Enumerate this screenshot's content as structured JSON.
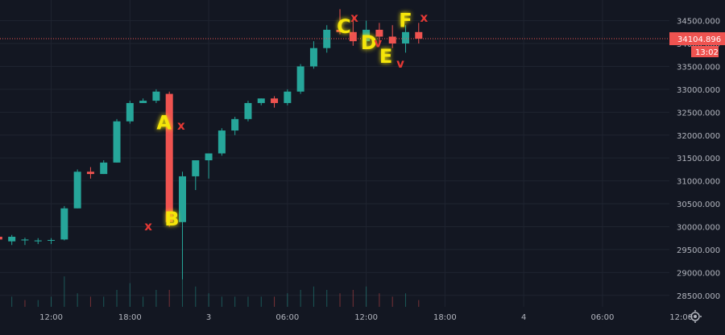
{
  "chart_data": {
    "type": "candlestick",
    "colors": {
      "up": "#26a69a",
      "down": "#ef5350",
      "background": "#131722",
      "grid": "#1f2430",
      "text": "#b2b5be",
      "price_line": "#ef5350"
    },
    "y_ticks": [
      28500,
      29000,
      29500,
      30000,
      30500,
      31000,
      31500,
      32000,
      32500,
      33000,
      33500,
      34000,
      34500
    ],
    "y_tick_labels": [
      "28500.000",
      "29000.000",
      "29500.000",
      "30000.000",
      "30500.000",
      "31000.000",
      "31500.000",
      "32000.000",
      "32500.000",
      "33000.000",
      "33500.000",
      "34000.000",
      "34500.000"
    ],
    "ylim": [
      28250,
      34950
    ],
    "x_ticks": [
      12,
      18,
      24,
      30,
      36,
      42,
      48,
      54,
      60
    ],
    "x_tick_labels": [
      "12:00",
      "18:00",
      "3",
      "06:00",
      "12:00",
      "18:00",
      "4",
      "06:00",
      "12:00"
    ],
    "xlim": [
      8.1,
      59.1
    ],
    "gear_icon": "gear-icon",
    "current_price": 34104.896,
    "current_price_label": "34104.896",
    "countdown_label": "13:02",
    "candles": [
      {
        "t": 8,
        "o": 29780,
        "h": 29850,
        "l": 29680,
        "c": 29720
      },
      {
        "t": 9,
        "o": 29680,
        "h": 29820,
        "l": 29600,
        "c": 29780
      },
      {
        "t": 10,
        "o": 29700,
        "h": 29760,
        "l": 29600,
        "c": 29720
      },
      {
        "t": 11,
        "o": 29680,
        "h": 29750,
        "l": 29620,
        "c": 29700
      },
      {
        "t": 12,
        "o": 29700,
        "h": 29750,
        "l": 29620,
        "c": 29710
      },
      {
        "t": 13,
        "o": 29720,
        "h": 30450,
        "l": 29700,
        "c": 30400
      },
      {
        "t": 14,
        "o": 30400,
        "h": 31250,
        "l": 30400,
        "c": 31200
      },
      {
        "t": 15,
        "o": 31200,
        "h": 31300,
        "l": 31050,
        "c": 31150
      },
      {
        "t": 16,
        "o": 31150,
        "h": 31450,
        "l": 31150,
        "c": 31400
      },
      {
        "t": 17,
        "o": 31400,
        "h": 32350,
        "l": 31400,
        "c": 32300
      },
      {
        "t": 18,
        "o": 32300,
        "h": 32750,
        "l": 32250,
        "c": 32700
      },
      {
        "t": 19,
        "o": 32700,
        "h": 32800,
        "l": 32700,
        "c": 32750
      },
      {
        "t": 20,
        "o": 32750,
        "h": 33000,
        "l": 32700,
        "c": 32950
      },
      {
        "t": 21,
        "o": 32900,
        "h": 32950,
        "l": 30000,
        "c": 30100
      },
      {
        "t": 22,
        "o": 30100,
        "h": 31200,
        "l": 28850,
        "c": 31100
      },
      {
        "t": 23,
        "o": 31100,
        "h": 31450,
        "l": 30800,
        "c": 31450
      },
      {
        "t": 24,
        "o": 31450,
        "h": 31600,
        "l": 31050,
        "c": 31600
      },
      {
        "t": 25,
        "o": 31600,
        "h": 32150,
        "l": 31550,
        "c": 32100
      },
      {
        "t": 26,
        "o": 32100,
        "h": 32400,
        "l": 32000,
        "c": 32350
      },
      {
        "t": 27,
        "o": 32350,
        "h": 32750,
        "l": 32300,
        "c": 32700
      },
      {
        "t": 28,
        "o": 32700,
        "h": 32800,
        "l": 32650,
        "c": 32800
      },
      {
        "t": 29,
        "o": 32800,
        "h": 32850,
        "l": 32600,
        "c": 32700
      },
      {
        "t": 30,
        "o": 32700,
        "h": 33000,
        "l": 32650,
        "c": 32950
      },
      {
        "t": 31,
        "o": 32950,
        "h": 33550,
        "l": 32900,
        "c": 33500
      },
      {
        "t": 32,
        "o": 33500,
        "h": 34050,
        "l": 33450,
        "c": 33900
      },
      {
        "t": 33,
        "o": 33900,
        "h": 34400,
        "l": 33800,
        "c": 34300
      },
      {
        "t": 34,
        "o": 34300,
        "h": 34750,
        "l": 34200,
        "c": 34250
      },
      {
        "t": 35,
        "o": 34250,
        "h": 34600,
        "l": 33950,
        "c": 34050
      },
      {
        "t": 36,
        "o": 34050,
        "h": 34500,
        "l": 33900,
        "c": 34300
      },
      {
        "t": 37,
        "o": 34300,
        "h": 34450,
        "l": 33950,
        "c": 34150
      },
      {
        "t": 38,
        "o": 34150,
        "h": 34400,
        "l": 33900,
        "c": 34000
      },
      {
        "t": 39,
        "o": 34000,
        "h": 34400,
        "l": 33800,
        "c": 34250
      },
      {
        "t": 40,
        "o": 34250,
        "h": 34450,
        "l": 34000,
        "c": 34105
      }
    ],
    "volumes": [
      {
        "t": 8,
        "v": 2,
        "up": false
      },
      {
        "t": 9,
        "v": 3,
        "up": true
      },
      {
        "t": 10,
        "v": 2,
        "up": false
      },
      {
        "t": 11,
        "v": 2,
        "up": true
      },
      {
        "t": 12,
        "v": 3,
        "up": true
      },
      {
        "t": 13,
        "v": 9,
        "up": true
      },
      {
        "t": 14,
        "v": 4,
        "up": true
      },
      {
        "t": 15,
        "v": 3,
        "up": false
      },
      {
        "t": 16,
        "v": 3,
        "up": true
      },
      {
        "t": 17,
        "v": 5,
        "up": true
      },
      {
        "t": 18,
        "v": 7,
        "up": true
      },
      {
        "t": 19,
        "v": 3,
        "up": true
      },
      {
        "t": 20,
        "v": 5,
        "up": true
      },
      {
        "t": 21,
        "v": 5,
        "up": false
      },
      {
        "t": 22,
        "v": 16,
        "up": true
      },
      {
        "t": 23,
        "v": 6,
        "up": true
      },
      {
        "t": 24,
        "v": 4,
        "up": true
      },
      {
        "t": 25,
        "v": 3,
        "up": true
      },
      {
        "t": 26,
        "v": 3,
        "up": true
      },
      {
        "t": 27,
        "v": 3,
        "up": true
      },
      {
        "t": 28,
        "v": 3,
        "up": true
      },
      {
        "t": 29,
        "v": 3,
        "up": false
      },
      {
        "t": 30,
        "v": 4,
        "up": true
      },
      {
        "t": 31,
        "v": 5,
        "up": true
      },
      {
        "t": 32,
        "v": 6,
        "up": true
      },
      {
        "t": 33,
        "v": 5,
        "up": true
      },
      {
        "t": 34,
        "v": 4,
        "up": false
      },
      {
        "t": 35,
        "v": 5,
        "up": false
      },
      {
        "t": 36,
        "v": 6,
        "up": true
      },
      {
        "t": 37,
        "v": 4,
        "up": false
      },
      {
        "t": 38,
        "v": 3,
        "up": false
      },
      {
        "t": 39,
        "v": 4,
        "up": true
      },
      {
        "t": 40,
        "v": 2,
        "up": false
      }
    ],
    "annotations": [
      {
        "text": "A",
        "kind": "letter",
        "t": 20.6,
        "price": 32250,
        "color": "#f5e50a"
      },
      {
        "text": "B",
        "kind": "letter",
        "t": 21.2,
        "price": 30150,
        "color": "#f5e50a"
      },
      {
        "text": "C",
        "kind": "letter",
        "t": 34.3,
        "price": 34350,
        "color": "#f5e50a"
      },
      {
        "text": "D",
        "kind": "letter",
        "t": 36.2,
        "price": 34000,
        "color": "#f5e50a"
      },
      {
        "text": "E",
        "kind": "letter",
        "t": 37.5,
        "price": 33700,
        "color": "#f5e50a"
      },
      {
        "text": "F",
        "kind": "letter",
        "t": 39.0,
        "price": 34480,
        "color": "#f5e50a"
      },
      {
        "text": "x",
        "kind": "mark",
        "t": 21.9,
        "price": 32200,
        "color": "#e53935"
      },
      {
        "text": "x",
        "kind": "mark",
        "t": 19.4,
        "price": 30000,
        "color": "#e53935"
      },
      {
        "text": "x",
        "kind": "mark",
        "t": 35.1,
        "price": 34550,
        "color": "#e53935"
      },
      {
        "text": "x",
        "kind": "mark",
        "t": 40.4,
        "price": 34550,
        "color": "#e53935"
      },
      {
        "text": "v",
        "kind": "mark",
        "t": 36.9,
        "price": 34000,
        "color": "#e53935"
      },
      {
        "text": "v",
        "kind": "mark",
        "t": 38.6,
        "price": 33550,
        "color": "#e53935"
      }
    ]
  }
}
